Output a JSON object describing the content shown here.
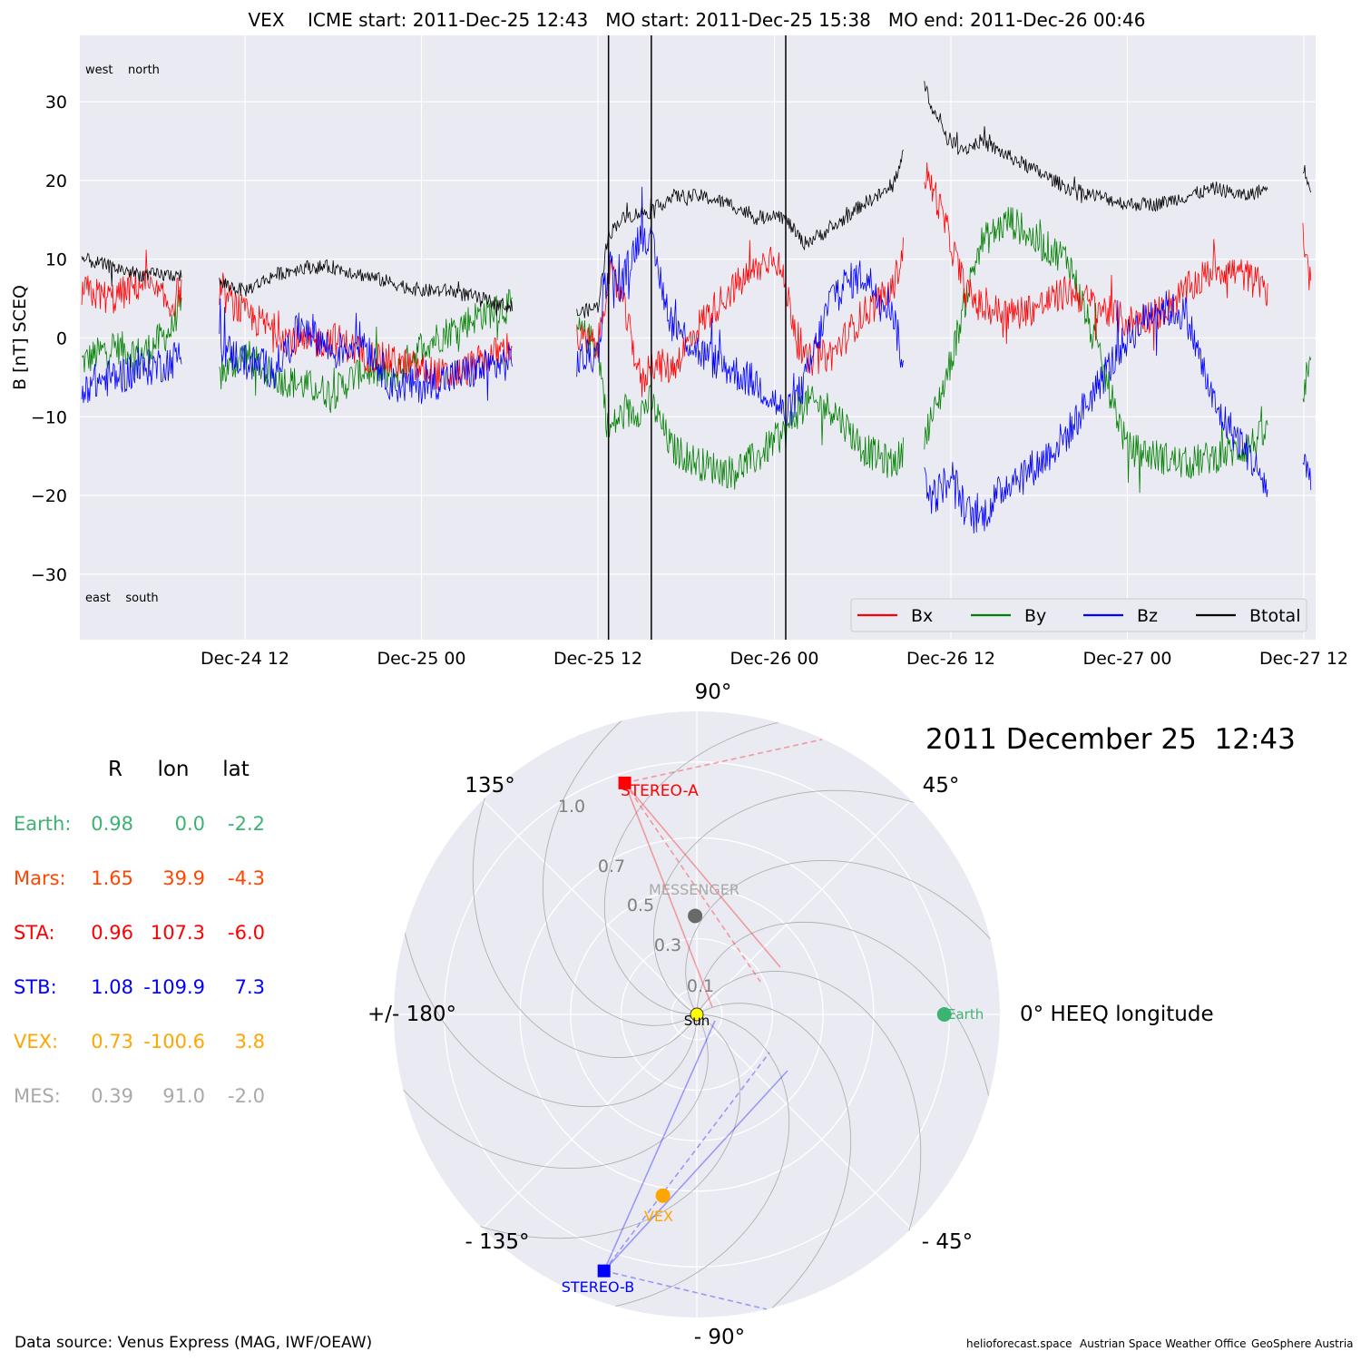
{
  "colors": {
    "bx": "#ff0000",
    "by": "#008000",
    "bz": "#0000ff",
    "btotal": "#000000",
    "panel_bg": "#eaeaf2",
    "grid": "#ffffff",
    "earth": "#3cb371",
    "mars": "#ff4500",
    "sta": "#ff0000",
    "stb": "#0000ff",
    "vex": "#ffa500",
    "mes": "#a9a9a9",
    "mes_marker": "#696969",
    "sun": "#ffff00"
  },
  "chart_data": [
    {
      "type": "line",
      "title": "VEX    ICME start: 2011-Dec-25 12:43   MO start: 2011-Dec-25 15:38   MO end: 2011-Dec-26 00:46",
      "ylabel": "B [nT] SCEQ",
      "xlabel": "",
      "x_unit": "hours since 2011-12-24 12:00",
      "xlim": [
        -11.3,
        72.6
      ],
      "ylim": [
        -38.5,
        38.5
      ],
      "yticks": [
        -30,
        -20,
        -10,
        0,
        10,
        20,
        30
      ],
      "ytick_labels": [
        "−30",
        "−20",
        "−10",
        "0",
        "10",
        "20",
        "30"
      ],
      "xticks": [
        0,
        12,
        24,
        36,
        48,
        60,
        72
      ],
      "xtick_labels": [
        "Dec-24 12",
        "Dec-25 00",
        "Dec-25 12",
        "Dec-26 00",
        "Dec-26 12",
        "Dec-27 00",
        "Dec-27 12"
      ],
      "grid": true,
      "legend_position": "lower-right",
      "corner_labels": {
        "top": "west    north",
        "bottom": "east    south"
      },
      "event_lines": [
        24.72,
        27.63,
        36.77
      ],
      "gaps": [
        [
          -4.3,
          -1.8
        ],
        [
          18.2,
          22.5
        ],
        [
          44.8,
          46.2
        ],
        [
          69.6,
          71.9
        ]
      ],
      "series": [
        {
          "name": "Bx",
          "color": "#ff0000",
          "x": [
            -11,
            -9,
            -7,
            -5,
            -4.5,
            -1.8,
            0,
            2,
            4,
            6,
            8,
            10,
            12,
            14,
            16,
            18,
            22.5,
            24,
            24.7,
            25.5,
            27,
            27.6,
            29,
            31,
            33,
            35,
            36,
            36.8,
            38,
            40,
            42,
            44,
            46.2,
            47,
            48,
            49,
            50,
            52,
            54,
            56,
            58,
            60,
            62,
            64,
            66,
            68,
            69.5,
            71.9,
            72.5
          ],
          "y": [
            6,
            5,
            7,
            4,
            6,
            6,
            3,
            1,
            -1,
            0,
            -2,
            -3,
            -4,
            -5,
            -3,
            -1,
            0,
            -1,
            8,
            6,
            -6,
            -3,
            -4,
            2,
            6,
            9,
            11,
            6,
            -3,
            -2,
            3,
            6,
            21,
            18,
            12,
            6,
            4,
            3,
            4,
            6,
            4,
            2,
            3,
            6,
            9,
            8,
            6,
            14,
            6
          ]
        },
        {
          "name": "By",
          "color": "#008000",
          "x": [
            -11,
            -9,
            -7,
            -5,
            -4.5,
            -1.8,
            0,
            2,
            4,
            6,
            8,
            10,
            12,
            14,
            16,
            18,
            22.5,
            24,
            24.7,
            25.5,
            27,
            27.6,
            29,
            31,
            33,
            35,
            36,
            36.8,
            38,
            40,
            42,
            44,
            46.2,
            47,
            48,
            49,
            50,
            52,
            54,
            56,
            58,
            60,
            62,
            64,
            66,
            68,
            69.5,
            71.9,
            72.5
          ],
          "y": [
            -3,
            -1,
            -2,
            1,
            4,
            -5,
            -2,
            -5,
            -6,
            -7,
            -4,
            -5,
            -1,
            1,
            3,
            4,
            1,
            -1,
            -12,
            -10,
            -9,
            -8,
            -14,
            -16,
            -17,
            -15,
            -13,
            -12,
            -8,
            -9,
            -14,
            -16,
            -12,
            -9,
            -3,
            5,
            12,
            15,
            12,
            10,
            -2,
            -14,
            -15,
            -16,
            -15,
            -14,
            -12,
            -8,
            -4
          ]
        },
        {
          "name": "Bz",
          "color": "#0000ff",
          "x": [
            -11,
            -9,
            -7,
            -5,
            -4.5,
            -1.8,
            0,
            2,
            4,
            6,
            8,
            10,
            12,
            14,
            16,
            18,
            22.5,
            24,
            24.7,
            25.5,
            27,
            27.6,
            29,
            31,
            33,
            35,
            36,
            36.8,
            38,
            40,
            42,
            44,
            46.2,
            47,
            48,
            49,
            50,
            52,
            54,
            56,
            58,
            60,
            62,
            64,
            66,
            68,
            69.5,
            71.9,
            72.5
          ],
          "y": [
            -6,
            -5,
            -4,
            -3,
            -2,
            -1,
            -3,
            -4,
            2,
            -2,
            0,
            -6,
            -6,
            -5,
            -4,
            -3,
            -3,
            -2,
            10,
            6,
            14,
            12,
            2,
            -2,
            -4,
            -6,
            -8,
            -10,
            -6,
            6,
            8,
            4,
            -18,
            -20,
            -17,
            -22,
            -23,
            -18,
            -16,
            -12,
            -6,
            0,
            4,
            3,
            -9,
            -14,
            -19,
            -16,
            -17
          ]
        },
        {
          "name": "Btotal",
          "color": "#000000",
          "x": [
            -11,
            -9,
            -7,
            -5,
            -4.5,
            -1.8,
            0,
            2,
            4,
            6,
            8,
            10,
            12,
            14,
            16,
            18,
            22.5,
            24,
            24.7,
            25.5,
            27,
            27.6,
            29,
            31,
            33,
            35,
            36,
            36.8,
            38,
            40,
            42,
            44,
            46.2,
            47,
            48,
            49,
            50,
            52,
            54,
            56,
            58,
            60,
            62,
            64,
            66,
            68,
            69.5,
            71.9,
            72.5
          ],
          "y": [
            10,
            9,
            8,
            8,
            8,
            7,
            6,
            8,
            9,
            9,
            8,
            7,
            6,
            6,
            5,
            4,
            3,
            4,
            13,
            15,
            16,
            16,
            18,
            18,
            17,
            15,
            16,
            15,
            12,
            14,
            17,
            19,
            32,
            28,
            25,
            24,
            25,
            23,
            21,
            19,
            18,
            17,
            17,
            18,
            19,
            18,
            19,
            22,
            19
          ]
        }
      ]
    },
    {
      "type": "scatter",
      "subtype": "polar",
      "timestamp": "2011 December 25  12:43",
      "angle_labels": {
        "0": "0° HEEQ longitude",
        "45": "45°",
        "90": "90°",
        "135": "135°",
        "180": "+/- 180°",
        "-135": "- 135°",
        "-90": "- 90°",
        "-45": "- 45°"
      },
      "radial_ticks": [
        0.1,
        0.3,
        0.5,
        0.7,
        1.0
      ],
      "radial_tick_labels": [
        "0.1",
        "0.3",
        "0.5",
        "0.7",
        "1.0"
      ],
      "rlim": [
        0,
        1.2
      ],
      "grid": true,
      "bodies": [
        {
          "name": "Earth",
          "label": "Earth",
          "r": 0.98,
          "lon": 0.0,
          "color": "#3cb371",
          "marker": "circle"
        },
        {
          "name": "STEREO-A",
          "label": "STEREO-A",
          "r": 0.96,
          "lon": 107.3,
          "color": "#ff0000",
          "marker": "square"
        },
        {
          "name": "STEREO-B",
          "label": "STEREO-B",
          "r": 1.08,
          "lon": -109.9,
          "color": "#0000ff",
          "marker": "square"
        },
        {
          "name": "VEX",
          "label": "VEX",
          "r": 0.73,
          "lon": -100.6,
          "color": "#ffa500",
          "marker": "circle"
        },
        {
          "name": "MESSENGER",
          "label": "MESSENGER",
          "r": 0.39,
          "lon": 91.0,
          "color": "#696969",
          "label_color": "#a9a9a9",
          "marker": "circle"
        },
        {
          "name": "Sun",
          "label": "Sun",
          "r": 0.0,
          "lon": 0.0,
          "color": "#ffff00",
          "marker": "circle"
        }
      ]
    }
  ],
  "position_table": {
    "headers": [
      "R",
      "lon",
      "lat"
    ],
    "rows": [
      {
        "name": "Earth:",
        "R": "0.98",
        "lon": "0.0",
        "lat": "-2.2",
        "color": "#3cb371"
      },
      {
        "name": "Mars:",
        "R": "1.65",
        "lon": "39.9",
        "lat": "-4.3",
        "color": "#ff4500"
      },
      {
        "name": "STA:",
        "R": "0.96",
        "lon": "107.3",
        "lat": "-6.0",
        "color": "#ff0000"
      },
      {
        "name": "STB:",
        "R": "1.08",
        "lon": "-109.9",
        "lat": "7.3",
        "color": "#0000ff"
      },
      {
        "name": "VEX:",
        "R": "0.73",
        "lon": "-100.6",
        "lat": "3.8",
        "color": "#ffa500"
      },
      {
        "name": "MES:",
        "R": "0.39",
        "lon": "91.0",
        "lat": "-2.0",
        "color": "#a9a9a9"
      }
    ]
  },
  "footer": {
    "source": "Data source: Venus Express (MAG, IWF/OEAW)",
    "credits": [
      "helioforecast.space",
      "Austrian Space Weather Office",
      "GeoSphere Austria"
    ]
  }
}
